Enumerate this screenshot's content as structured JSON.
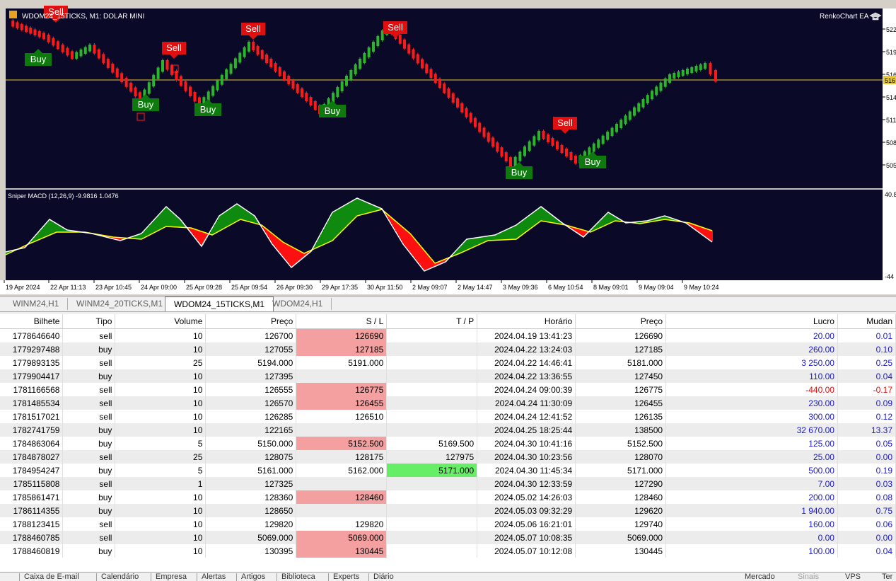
{
  "chart": {
    "symbol_title": "WDOM24_15TICKS, M1:  DOLAR MINI",
    "ea_label": "RenkoChart EA",
    "current_price_label": "516",
    "price_ticks": [
      "522",
      "519",
      "516",
      "514",
      "511",
      "508",
      "505"
    ],
    "macd_label": "Sniper MACD (12,26,9) -9.9816 1.0476",
    "macd_ticks": [
      "40.8",
      "-44"
    ],
    "time_labels": [
      "19 Apr 2024",
      "22 Apr 11:13",
      "23 Apr 10:45",
      "24 Apr 09:00",
      "25 Apr 09:28",
      "25 Apr 09:54",
      "26 Apr 09:30",
      "29 Apr 17:35",
      "30 Apr 11:50",
      "2 May 09:07",
      "2 May 14:47",
      "3 May 09:36",
      "6 May 10:54",
      "8 May 09:01",
      "9 May 09:04",
      "9 May 10:24"
    ],
    "signal_labels": {
      "buy": "Buy",
      "sell": "Sell"
    },
    "colors": {
      "bg": "#0a0a28",
      "up": "#2ab52a",
      "down": "#ff1a1a",
      "price_line": "#e8c830",
      "macd_up_fill": "#0e8a0e",
      "macd_down_fill": "#ff1010",
      "macd_line": "#ffffff",
      "signal_line": "#ffff00"
    }
  },
  "tabs": [
    {
      "label": "WINM24,H1",
      "active": false
    },
    {
      "label": "WINM24_20TICKS,M1",
      "active": false
    },
    {
      "label": "WDOM24_15TICKS,M1",
      "active": true
    },
    {
      "label": "WDOM24,H1",
      "active": false
    }
  ],
  "table": {
    "columns": [
      "Bilhete",
      "Tipo",
      "Volume",
      "Preço",
      "S / L",
      "T / P",
      "Horário",
      "Preço",
      "Lucro",
      "Mudan"
    ],
    "rows": [
      {
        "ticket": "1778646640",
        "type": "sell",
        "volume": "10",
        "price": "126700",
        "sl": "126690",
        "tp": "",
        "time": "2024.04.19 13:41:23",
        "close_price": "126690",
        "profit": "20.00",
        "change": "0.01",
        "sl_hl": "red",
        "tp_hl": ""
      },
      {
        "ticket": "1779297488",
        "type": "buy",
        "volume": "10",
        "price": "127055",
        "sl": "127185",
        "tp": "",
        "time": "2024.04.22 13:24:03",
        "close_price": "127185",
        "profit": "260.00",
        "change": "0.10",
        "sl_hl": "red",
        "tp_hl": ""
      },
      {
        "ticket": "1779893135",
        "type": "sell",
        "volume": "25",
        "price": "5194.000",
        "sl": "5191.000",
        "tp": "",
        "time": "2024.04.22 14:46:41",
        "close_price": "5181.000",
        "profit": "3 250.00",
        "change": "0.25",
        "sl_hl": "",
        "tp_hl": ""
      },
      {
        "ticket": "1779904417",
        "type": "buy",
        "volume": "10",
        "price": "127395",
        "sl": "",
        "tp": "",
        "time": "2024.04.22 13:36:55",
        "close_price": "127450",
        "profit": "110.00",
        "change": "0.04",
        "sl_hl": "",
        "tp_hl": ""
      },
      {
        "ticket": "1781166568",
        "type": "sell",
        "volume": "10",
        "price": "126555",
        "sl": "126775",
        "tp": "",
        "time": "2024.04.24 09:00:39",
        "close_price": "126775",
        "profit": "-440.00",
        "change": "-0.17",
        "sl_hl": "red",
        "tp_hl": ""
      },
      {
        "ticket": "1781485534",
        "type": "sell",
        "volume": "10",
        "price": "126570",
        "sl": "126455",
        "tp": "",
        "time": "2024.04.24 11:30:09",
        "close_price": "126455",
        "profit": "230.00",
        "change": "0.09",
        "sl_hl": "red",
        "tp_hl": ""
      },
      {
        "ticket": "1781517021",
        "type": "sell",
        "volume": "10",
        "price": "126285",
        "sl": "126510",
        "tp": "",
        "time": "2024.04.24 12:41:52",
        "close_price": "126135",
        "profit": "300.00",
        "change": "0.12",
        "sl_hl": "",
        "tp_hl": ""
      },
      {
        "ticket": "1782741759",
        "type": "buy",
        "volume": "10",
        "price": "122165",
        "sl": "",
        "tp": "",
        "time": "2024.04.25 18:25:44",
        "close_price": "138500",
        "profit": "32 670.00",
        "change": "13.37",
        "sl_hl": "",
        "tp_hl": ""
      },
      {
        "ticket": "1784863064",
        "type": "buy",
        "volume": "5",
        "price": "5150.000",
        "sl": "5152.500",
        "tp": "5169.500",
        "time": "2024.04.30 10:41:16",
        "close_price": "5152.500",
        "profit": "125.00",
        "change": "0.05",
        "sl_hl": "red",
        "tp_hl": ""
      },
      {
        "ticket": "1784878027",
        "type": "sell",
        "volume": "25",
        "price": "128075",
        "sl": "128175",
        "tp": "127975",
        "time": "2024.04.30 10:23:56",
        "close_price": "128070",
        "profit": "25.00",
        "change": "0.00",
        "sl_hl": "",
        "tp_hl": ""
      },
      {
        "ticket": "1784954247",
        "type": "buy",
        "volume": "5",
        "price": "5161.000",
        "sl": "5162.000",
        "tp": "5171.000",
        "time": "2024.04.30 11:45:34",
        "close_price": "5171.000",
        "profit": "500.00",
        "change": "0.19",
        "sl_hl": "",
        "tp_hl": "green"
      },
      {
        "ticket": "1785115808",
        "type": "sell",
        "volume": "1",
        "price": "127325",
        "sl": "",
        "tp": "",
        "time": "2024.04.30 12:33:59",
        "close_price": "127290",
        "profit": "7.00",
        "change": "0.03",
        "sl_hl": "",
        "tp_hl": ""
      },
      {
        "ticket": "1785861471",
        "type": "buy",
        "volume": "10",
        "price": "128360",
        "sl": "128460",
        "tp": "",
        "time": "2024.05.02 14:26:03",
        "close_price": "128460",
        "profit": "200.00",
        "change": "0.08",
        "sl_hl": "red",
        "tp_hl": ""
      },
      {
        "ticket": "1786114355",
        "type": "buy",
        "volume": "10",
        "price": "128650",
        "sl": "",
        "tp": "",
        "time": "2024.05.03 09:32:29",
        "close_price": "129620",
        "profit": "1 940.00",
        "change": "0.75",
        "sl_hl": "",
        "tp_hl": ""
      },
      {
        "ticket": "1788123415",
        "type": "sell",
        "volume": "10",
        "price": "129820",
        "sl": "129820",
        "tp": "",
        "time": "2024.05.06 16:21:01",
        "close_price": "129740",
        "profit": "160.00",
        "change": "0.06",
        "sl_hl": "",
        "tp_hl": ""
      },
      {
        "ticket": "1788460785",
        "type": "sell",
        "volume": "10",
        "price": "5069.000",
        "sl": "5069.000",
        "tp": "",
        "time": "2024.05.07 10:08:35",
        "close_price": "5069.000",
        "profit": "0.00",
        "change": "0.00",
        "sl_hl": "red",
        "tp_hl": ""
      },
      {
        "ticket": "1788460819",
        "type": "buy",
        "volume": "10",
        "price": "130395",
        "sl": "130445",
        "tp": "",
        "time": "2024.05.07 10:12:08",
        "close_price": "130445",
        "profit": "100.00",
        "change": "0.04",
        "sl_hl": "red",
        "tp_hl": ""
      }
    ]
  },
  "statusbar": {
    "items": [
      "Caixa de E-mail",
      "Calendário",
      "Empresa",
      "Alertas",
      "Artigos",
      "Biblioteca",
      "Experts",
      "Diário"
    ],
    "right_items": [
      "Mercado",
      "Sinais",
      "VPS",
      "Ter"
    ]
  }
}
